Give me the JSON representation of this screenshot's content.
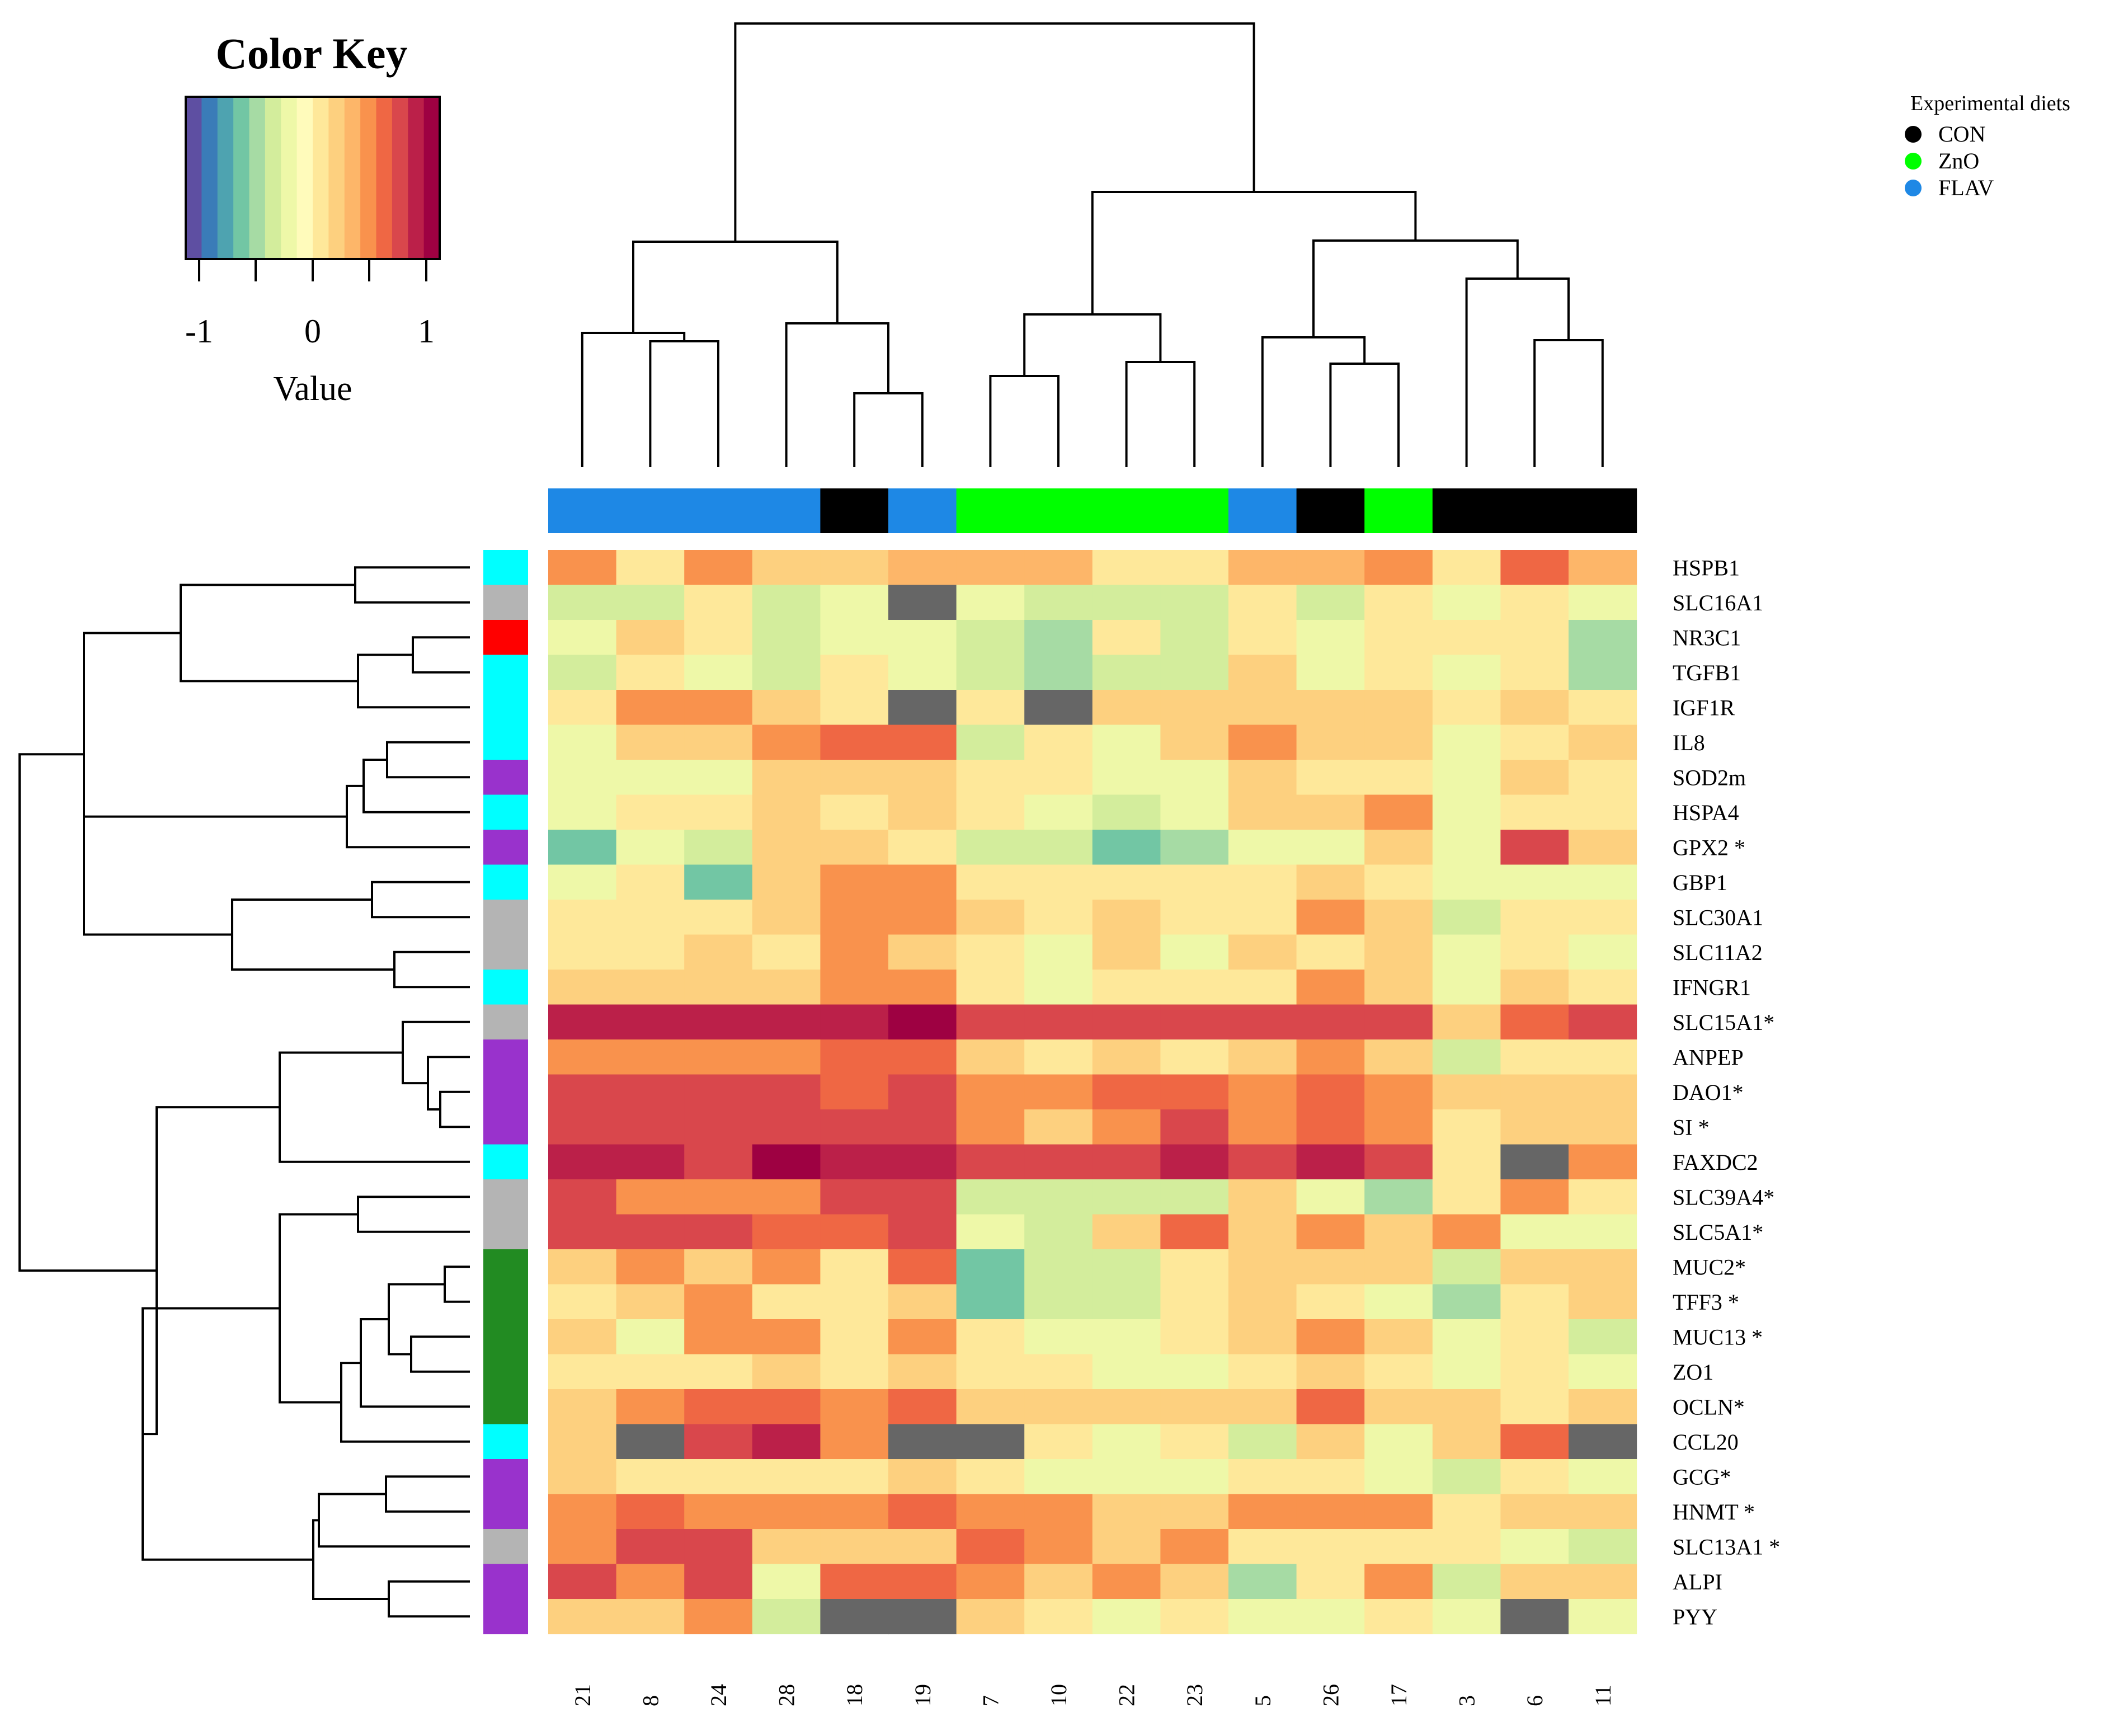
{
  "chart_data": {
    "type": "heatmap",
    "color_key": {
      "title": "Color Key",
      "label": "Value",
      "ticks": [
        "-1",
        "0",
        "1"
      ],
      "range": [
        -1.15,
        1.15
      ],
      "palette": [
        "#5e4fa2",
        "#3a7cb8",
        "#4ea3b0",
        "#72c6a4",
        "#a6dba4",
        "#d3ed9c",
        "#eef8a8",
        "#fffbbb",
        "#fee89a",
        "#fdd07f",
        "#fdb669",
        "#f9924d",
        "#ef6744",
        "#d9474c",
        "#bb2049",
        "#9e0142"
      ]
    },
    "legend": {
      "title": "Experimental diets",
      "entries": [
        {
          "label": "CON",
          "color": "#000000"
        },
        {
          "label": "ZnO",
          "color": "#00ff00"
        },
        {
          "label": "FLAV",
          "color": "#1e88e5"
        }
      ]
    },
    "samples": [
      "21",
      "8",
      "24",
      "28",
      "18",
      "19",
      "7",
      "10",
      "22",
      "23",
      "5",
      "26",
      "17",
      "3",
      "6",
      "11"
    ],
    "sample_groups": [
      "FLAV",
      "FLAV",
      "FLAV",
      "FLAV",
      "CON",
      "FLAV",
      "ZnO",
      "ZnO",
      "ZnO",
      "ZnO",
      "FLAV",
      "CON",
      "ZnO",
      "CON",
      "CON",
      "CON"
    ],
    "genes": [
      "HSPB1",
      "SLC16A1",
      "NR3C1",
      "TGFB1",
      "IGF1R",
      "IL8",
      "SOD2m",
      "HSPA4",
      "GPX2 *",
      "GBP1",
      "SLC30A1",
      "SLC11A2",
      "IFNGR1",
      "SLC15A1*",
      "ANPEP",
      "DAO1*",
      "SI  *",
      "FAXDC2",
      "SLC39A4*",
      "SLC5A1*",
      "MUC2*",
      "TFF3 *",
      "MUC13 *",
      "ZO1",
      "OCLN*",
      "CCL20",
      "GCG*",
      "HNMT  *",
      "SLC13A1 *",
      "ALPI",
      "PYY"
    ],
    "gene_category_colors": [
      "#00ffff",
      "#b4b4b4",
      "#ff0000",
      "#00ffff",
      "#00ffff",
      "#00ffff",
      "#9932cc",
      "#00ffff",
      "#9932cc",
      "#00ffff",
      "#b4b4b4",
      "#b4b4b4",
      "#00ffff",
      "#b4b4b4",
      "#9932cc",
      "#9932cc",
      "#9932cc",
      "#00ffff",
      "#b4b4b4",
      "#b4b4b4",
      "#228b22",
      "#228b22",
      "#228b22",
      "#228b22",
      "#228b22",
      "#00ffff",
      "#9932cc",
      "#9932cc",
      "#b4b4b4",
      "#9932cc",
      "#9932cc"
    ],
    "values": [
      [
        0.45,
        0.05,
        0.45,
        0.25,
        0.25,
        0.4,
        0.4,
        0.3,
        0.1,
        0.1,
        0.4,
        0.3,
        0.45,
        0.05,
        0.6,
        0.4
      ],
      [
        -0.3,
        -0.3,
        0.05,
        -0.3,
        -0.2,
        null,
        -0.15,
        -0.3,
        -0.3,
        -0.3,
        0.05,
        -0.3,
        0.05,
        -0.15,
        0.05,
        -0.15
      ],
      [
        -0.15,
        0.25,
        0.05,
        -0.3,
        -0.2,
        -0.2,
        -0.35,
        -0.55,
        0.05,
        -0.35,
        0.05,
        -0.15,
        0.05,
        0.05,
        0.05,
        -0.55
      ],
      [
        -0.3,
        0.05,
        -0.15,
        -0.3,
        0.05,
        -0.2,
        -0.35,
        -0.55,
        -0.3,
        -0.3,
        0.25,
        -0.15,
        0.05,
        -0.15,
        0.05,
        -0.55
      ],
      [
        0.05,
        0.45,
        0.45,
        0.25,
        0.05,
        null,
        0.05,
        null,
        0.25,
        0.25,
        0.25,
        0.25,
        0.25,
        0.05,
        0.25,
        0.05
      ],
      [
        -0.15,
        0.25,
        0.25,
        0.45,
        0.6,
        0.6,
        -0.3,
        0.05,
        -0.15,
        0.25,
        0.45,
        0.25,
        0.25,
        -0.15,
        0.05,
        0.25
      ],
      [
        -0.15,
        -0.15,
        -0.15,
        0.25,
        0.25,
        0.25,
        0.05,
        0.05,
        -0.15,
        -0.15,
        0.25,
        0.05,
        0.05,
        -0.15,
        0.25,
        0.05
      ],
      [
        -0.15,
        0.05,
        0.05,
        0.25,
        0.05,
        0.25,
        0.05,
        -0.15,
        -0.35,
        -0.15,
        0.25,
        0.25,
        0.45,
        -0.15,
        0.05,
        0.05
      ],
      [
        -0.65,
        -0.15,
        -0.35,
        0.25,
        0.25,
        0.05,
        -0.3,
        -0.3,
        -0.65,
        -0.5,
        -0.15,
        -0.15,
        0.25,
        -0.15,
        0.75,
        0.25
      ],
      [
        -0.15,
        0.05,
        -0.65,
        0.25,
        0.45,
        0.45,
        0.05,
        0.05,
        0.05,
        0.05,
        0.05,
        0.25,
        0.05,
        -0.15,
        -0.15,
        -0.15
      ],
      [
        0.05,
        0.05,
        0.05,
        0.25,
        0.45,
        0.45,
        0.25,
        0.05,
        0.25,
        0.05,
        0.05,
        0.45,
        0.25,
        -0.3,
        0.05,
        0.05
      ],
      [
        0.05,
        0.05,
        0.25,
        0.05,
        0.45,
        0.25,
        0.05,
        -0.15,
        0.25,
        -0.15,
        0.25,
        0.05,
        0.25,
        -0.15,
        0.05,
        -0.15
      ],
      [
        0.25,
        0.25,
        0.25,
        0.25,
        0.45,
        0.45,
        0.05,
        -0.15,
        0.05,
        0.05,
        0.05,
        0.45,
        0.25,
        -0.15,
        0.25,
        0.05
      ],
      [
        0.95,
        0.95,
        0.95,
        0.95,
        0.95,
        1.1,
        0.85,
        0.85,
        0.75,
        0.85,
        0.75,
        0.85,
        0.85,
        0.25,
        0.6,
        0.75
      ],
      [
        0.45,
        0.45,
        0.45,
        0.45,
        0.6,
        0.6,
        0.25,
        0.05,
        0.25,
        0.05,
        0.25,
        0.45,
        0.25,
        -0.3,
        0.05,
        0.05
      ],
      [
        0.85,
        0.75,
        0.75,
        0.75,
        0.6,
        0.75,
        0.45,
        0.45,
        0.6,
        0.6,
        0.45,
        0.6,
        0.45,
        0.25,
        0.25,
        0.25
      ],
      [
        0.75,
        0.85,
        0.85,
        0.75,
        0.75,
        0.75,
        0.45,
        0.25,
        0.45,
        0.75,
        0.45,
        0.6,
        0.45,
        0.05,
        0.25,
        0.25
      ],
      [
        0.95,
        0.95,
        0.75,
        1.1,
        0.95,
        0.95,
        0.85,
        0.75,
        0.75,
        0.95,
        0.75,
        0.95,
        0.85,
        0.05,
        null,
        0.45
      ],
      [
        0.75,
        0.45,
        0.45,
        0.45,
        0.75,
        0.75,
        -0.3,
        -0.3,
        -0.3,
        -0.3,
        0.25,
        -0.15,
        -0.5,
        0.05,
        0.45,
        0.05
      ],
      [
        0.75,
        0.75,
        0.85,
        0.6,
        0.6,
        0.75,
        -0.15,
        -0.3,
        0.25,
        0.6,
        0.25,
        0.45,
        0.25,
        0.45,
        -0.15,
        -0.15
      ],
      [
        0.25,
        0.45,
        0.25,
        0.45,
        0.05,
        0.6,
        -0.65,
        -0.3,
        -0.3,
        0.05,
        0.25,
        0.25,
        0.25,
        -0.3,
        0.25,
        0.25
      ],
      [
        0.05,
        0.25,
        0.45,
        0.05,
        0.05,
        0.25,
        -0.65,
        -0.3,
        -0.3,
        0.05,
        0.25,
        0.05,
        -0.15,
        -0.5,
        0.05,
        0.25
      ],
      [
        0.25,
        -0.15,
        0.45,
        0.45,
        0.05,
        0.45,
        0.05,
        -0.15,
        -0.15,
        0.05,
        0.25,
        0.45,
        0.25,
        -0.15,
        0.05,
        -0.3
      ],
      [
        0.05,
        0.05,
        0.05,
        0.25,
        0.05,
        0.25,
        0.05,
        0.05,
        -0.15,
        -0.15,
        0.05,
        0.25,
        0.05,
        -0.15,
        0.05,
        -0.15
      ],
      [
        0.25,
        0.45,
        0.6,
        0.6,
        0.45,
        0.6,
        0.25,
        0.25,
        0.25,
        0.25,
        0.25,
        0.6,
        0.25,
        0.25,
        0.05,
        0.25
      ],
      [
        0.25,
        null,
        0.85,
        0.95,
        0.45,
        null,
        null,
        0.05,
        -0.15,
        0.05,
        -0.3,
        0.25,
        -0.15,
        0.25,
        0.6,
        null
      ],
      [
        0.25,
        0.05,
        0.05,
        0.05,
        0.05,
        0.25,
        0.05,
        -0.15,
        -0.15,
        -0.15,
        0.05,
        0.05,
        -0.15,
        -0.3,
        0.05,
        -0.15
      ],
      [
        0.45,
        0.6,
        0.45,
        0.45,
        0.45,
        0.6,
        0.45,
        0.45,
        0.25,
        0.25,
        0.45,
        0.45,
        0.45,
        0.05,
        0.25,
        0.25
      ],
      [
        0.45,
        0.75,
        0.75,
        0.25,
        0.25,
        0.25,
        0.6,
        0.45,
        0.25,
        0.45,
        0.05,
        0.05,
        0.05,
        0.05,
        -0.15,
        -0.3
      ],
      [
        0.75,
        0.45,
        0.85,
        -0.15,
        0.6,
        0.6,
        0.45,
        0.25,
        0.45,
        0.25,
        -0.5,
        0.05,
        0.45,
        -0.3,
        0.25,
        0.25
      ],
      [
        0.25,
        0.25,
        0.45,
        -0.3,
        null,
        null,
        0.25,
        0.05,
        -0.15,
        0.05,
        -0.15,
        -0.15,
        0.05,
        -0.15,
        null,
        -0.15
      ]
    ],
    "missing_color": "#666666"
  }
}
